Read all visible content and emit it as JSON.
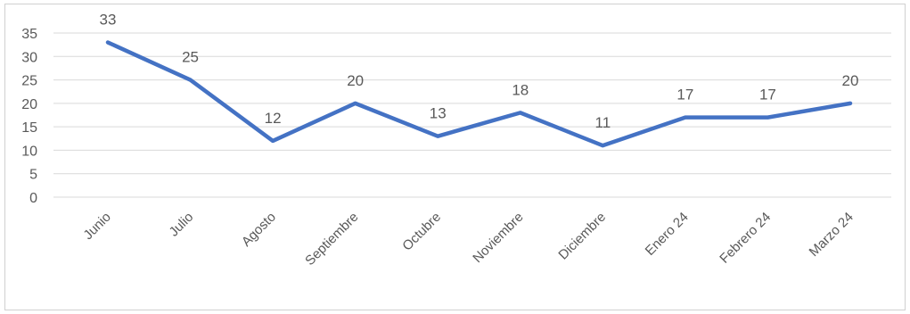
{
  "chart_data": {
    "type": "line",
    "categories": [
      "Junio",
      "Julio",
      "Agosto",
      "Septiembre",
      "Octubre",
      "Noviembre",
      "Diciembre",
      "Enero 24",
      "Febrero 24",
      "Marzo 24"
    ],
    "series": [
      {
        "values": [
          33,
          25,
          12,
          20,
          13,
          18,
          11,
          17,
          17,
          20
        ],
        "color": "#4472c4"
      }
    ],
    "yticks": [
      "0",
      "5",
      "10",
      "15",
      "20",
      "25",
      "30",
      "35"
    ],
    "ylim": [
      0,
      35
    ],
    "grid": true,
    "data_labels": [
      "33",
      "25",
      "12",
      "20",
      "13",
      "18",
      "11",
      "17",
      "17",
      "20"
    ],
    "title": "",
    "xlabel": "",
    "ylabel": ""
  }
}
